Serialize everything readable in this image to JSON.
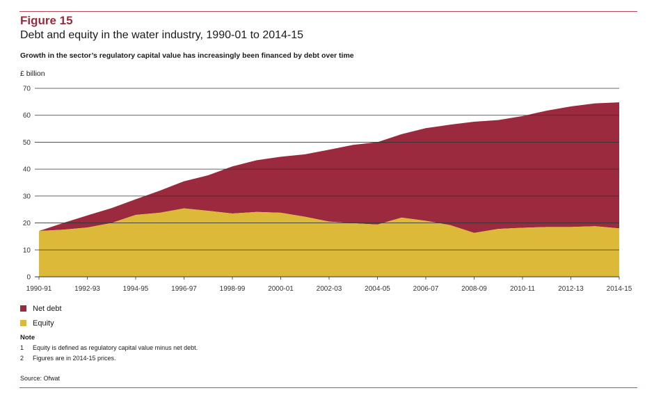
{
  "figure": {
    "label": "Figure 15",
    "title": "Debt and equity in the water industry, 1990-01 to 2014-15",
    "subtitle": "Growth in the sector’s regulatory capital value has increasingly been financed by debt over time"
  },
  "notes": {
    "title": "Note",
    "items": [
      {
        "num": "1",
        "text": "Equity is defined as regulatory capital value minus net debt."
      },
      {
        "num": "2",
        "text": "Figures are in 2014-15 prices."
      }
    ]
  },
  "source": "Source: Ofwat",
  "colors": {
    "net_debt": "#9b2a3e",
    "equity": "#ddb93a",
    "grid": "#333333",
    "rule": "#b5485a"
  },
  "chart_data": {
    "type": "area",
    "stacked": true,
    "title": "Debt and equity in the water industry, 1990-01 to 2014-15",
    "ylabel": "£ billion",
    "xlabel": "",
    "ylim": [
      0,
      70
    ],
    "yticks": [
      0,
      10,
      20,
      30,
      40,
      50,
      60,
      70
    ],
    "grid": true,
    "legend": "bottom-left",
    "x": [
      "1990-91",
      "1991-92",
      "1992-93",
      "1993-94",
      "1994-95",
      "1995-96",
      "1996-97",
      "1997-98",
      "1998-99",
      "1999-00",
      "2000-01",
      "2001-02",
      "2002-03",
      "2003-04",
      "2004-05",
      "2005-06",
      "2006-07",
      "2007-08",
      "2008-09",
      "2009-10",
      "2010-11",
      "2011-12",
      "2012-13",
      "2013-14",
      "2014-15"
    ],
    "xtick_labels": [
      "1990-91",
      "1992-93",
      "1994-95",
      "1996-97",
      "1998-99",
      "2000-01",
      "2002-03",
      "2004-05",
      "2006-07",
      "2008-09",
      "2010-11",
      "2012-13",
      "2014-15"
    ],
    "series": [
      {
        "name": "Equity",
        "values": [
          17,
          17.5,
          18.3,
          20,
          23,
          23.8,
          25.4,
          24.5,
          23.5,
          24.1,
          23.8,
          22.3,
          20.5,
          19.9,
          19.4,
          22,
          20.8,
          19.2,
          16.3,
          17.8,
          18.2,
          18.5,
          18.5,
          18.8,
          18
        ]
      },
      {
        "name": "Net debt",
        "values": [
          0,
          2.5,
          4.5,
          5.5,
          5.8,
          8.2,
          10.1,
          13.2,
          17.5,
          19.2,
          20.8,
          23.2,
          26.7,
          29.1,
          30.6,
          31,
          34.4,
          37.3,
          41.3,
          40.4,
          41.5,
          43.2,
          44.8,
          45.6,
          46.8
        ]
      }
    ]
  }
}
